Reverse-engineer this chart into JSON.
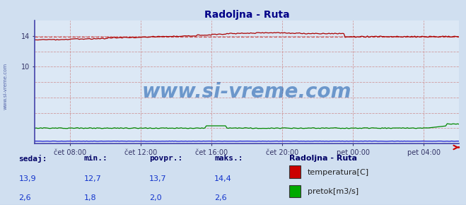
{
  "title": "Radoljna - Ruta",
  "bg_color": "#d0dff0",
  "plot_bg_color": "#dce8f5",
  "grid_color_v": "#b0b0cc",
  "grid_color_h": "#cc9999",
  "x_labels": [
    "čet 08:00",
    "čet 12:00",
    "čet 16:00",
    "čet 20:00",
    "pet 00:00",
    "pet 04:00"
  ],
  "x_ticks_norm": [
    0.0833,
    0.25,
    0.4167,
    0.5833,
    0.75,
    0.9167
  ],
  "ylim": [
    0,
    16
  ],
  "yticks": [
    10,
    14
  ],
  "temp_color": "#aa0000",
  "flow_color": "#008800",
  "height_color": "#0000cc",
  "avg_line_color": "#cc4444",
  "watermark": "www.si-vreme.com",
  "legend_station": "Radoljna - Ruta",
  "legend_items": [
    {
      "label": "temperatura[C]",
      "color": "#cc0000"
    },
    {
      "label": "pretok[m3/s]",
      "color": "#00aa00"
    }
  ],
  "stats_headers": [
    "sedaj:",
    "min.:",
    "povpr.:",
    "maks.:"
  ],
  "stats_temp": [
    "13,9",
    "12,7",
    "13,7",
    "14,4"
  ],
  "stats_flow": [
    "2,6",
    "1,8",
    "2,0",
    "2,6"
  ]
}
